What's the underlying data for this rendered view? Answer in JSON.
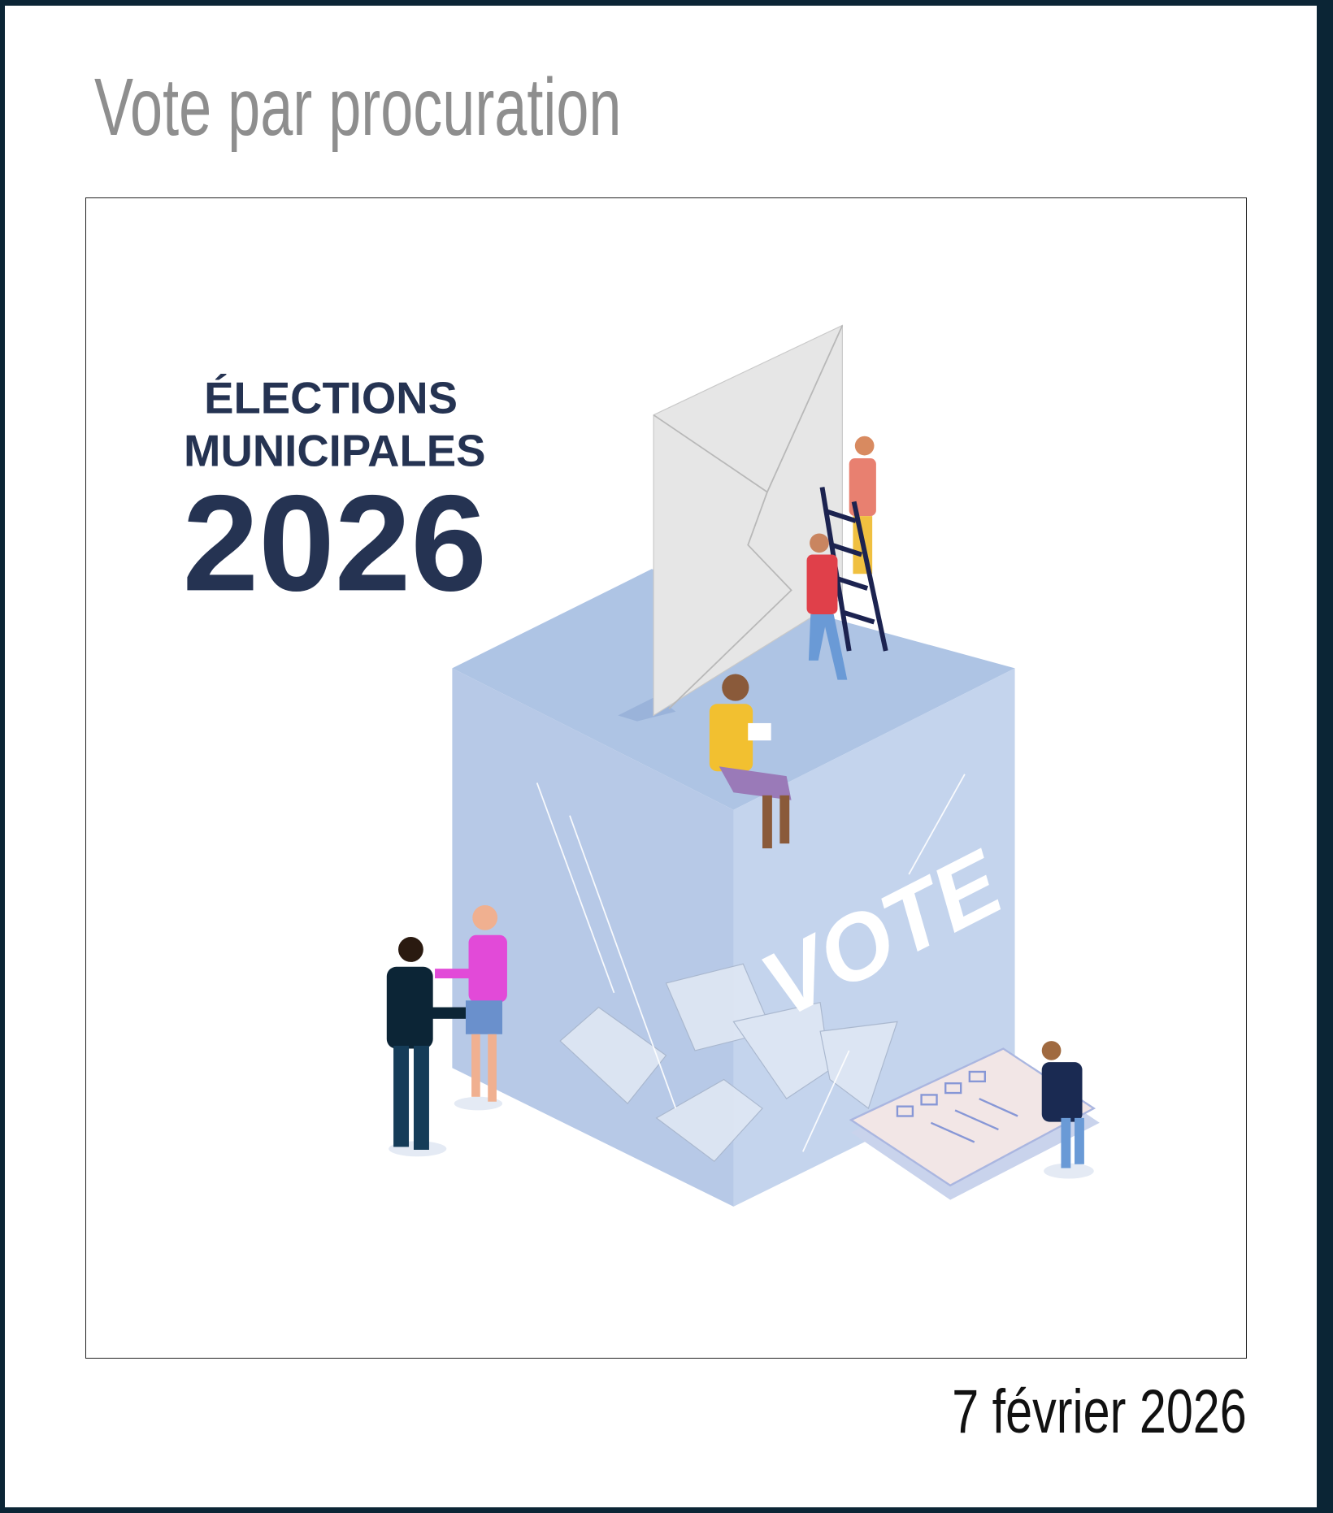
{
  "header": {
    "title": "Vote par procuration"
  },
  "illustration": {
    "line1": "ÉLECTIONS",
    "line2": "MUNICIPALES",
    "year": "2026",
    "box_label": "VOTE"
  },
  "footer": {
    "date": "7 février 2026"
  },
  "colors": {
    "frame_border": "#0b2535",
    "title": "#8e8e8e",
    "headline": "#253352",
    "box": "#b3c6e6"
  }
}
